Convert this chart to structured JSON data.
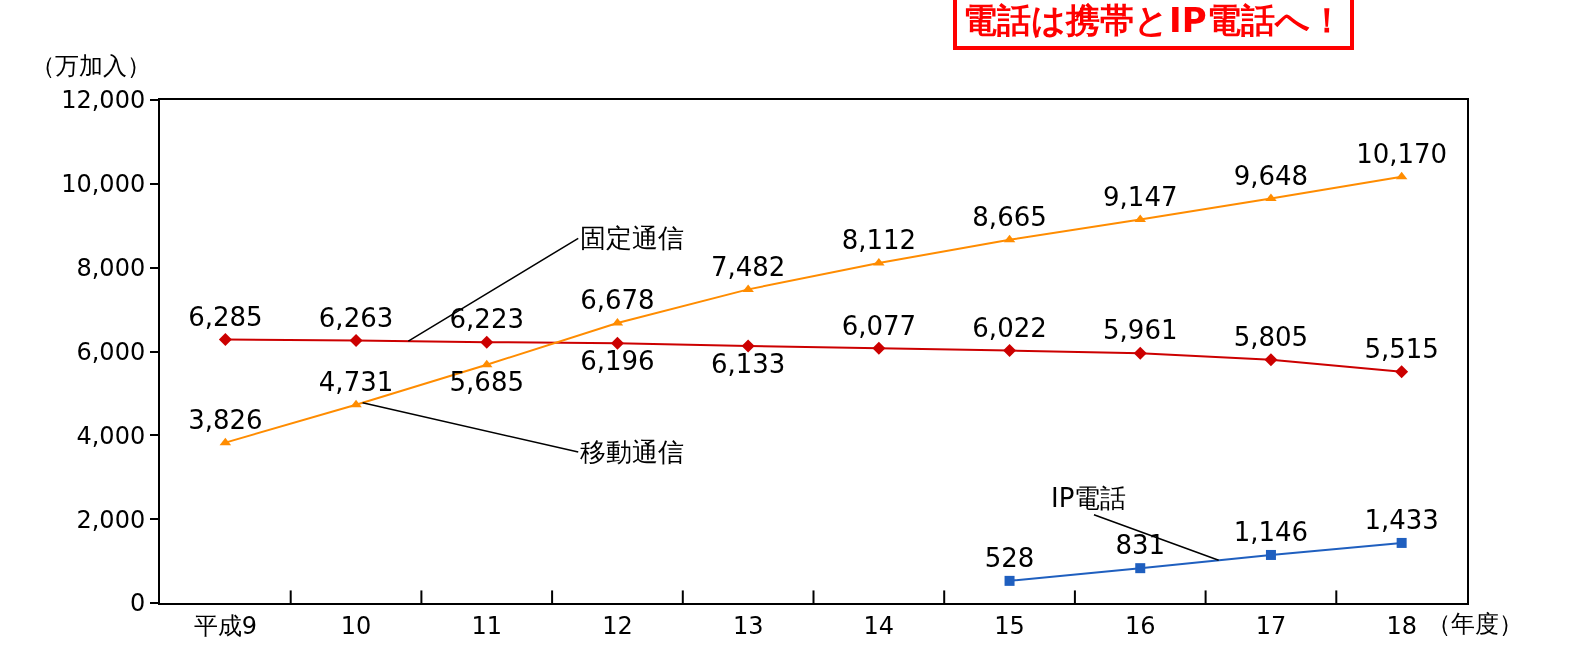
{
  "chart_data": {
    "type": "line",
    "title": "電話は携帯とIP電話へ！",
    "ylabel": "（万加入）",
    "xlabel": "（年度）",
    "categories": [
      "平成9",
      "10",
      "11",
      "12",
      "13",
      "14",
      "15",
      "16",
      "17",
      "18"
    ],
    "series": [
      {
        "name": "固定通信",
        "color": "#cc0000",
        "marker": "diamond",
        "values": [
          6285,
          6263,
          6223,
          6196,
          6133,
          6077,
          6022,
          5961,
          5805,
          5515
        ],
        "value_labels": [
          "6,285",
          "6,263",
          "6,223",
          "6,196",
          "6,133",
          "6,077",
          "6,022",
          "5,961",
          "5,805",
          "5,515"
        ]
      },
      {
        "name": "移動通信",
        "color": "#ff8c00",
        "marker": "triangle",
        "values": [
          3826,
          4731,
          5685,
          6678,
          7482,
          8112,
          8665,
          9147,
          9648,
          10170
        ],
        "value_labels": [
          "3,826",
          "4,731",
          "5,685",
          "6,678",
          "7,482",
          "8,112",
          "8,665",
          "9,147",
          "9,648",
          "10,170"
        ]
      },
      {
        "name": "IP電話",
        "color": "#1f5fbf",
        "marker": "square",
        "values": [
          null,
          null,
          null,
          null,
          null,
          null,
          528,
          831,
          1146,
          1433
        ],
        "value_labels": [
          null,
          null,
          null,
          null,
          null,
          null,
          "528",
          "831",
          "1,146",
          "1,433"
        ]
      }
    ],
    "ylim": [
      0,
      12000
    ],
    "yticks": [
      0,
      {
        "value": 2000,
        "label": "2,000"
      },
      {
        "value": 4000,
        "label": "4,000"
      },
      {
        "value": 6000,
        "label": "6,000"
      },
      {
        "value": 8000,
        "label": "8,000"
      },
      {
        "value": 10000,
        "label": "10,000"
      },
      {
        "value": 12000,
        "label": "12,000"
      }
    ],
    "grid": false,
    "legend": false
  }
}
